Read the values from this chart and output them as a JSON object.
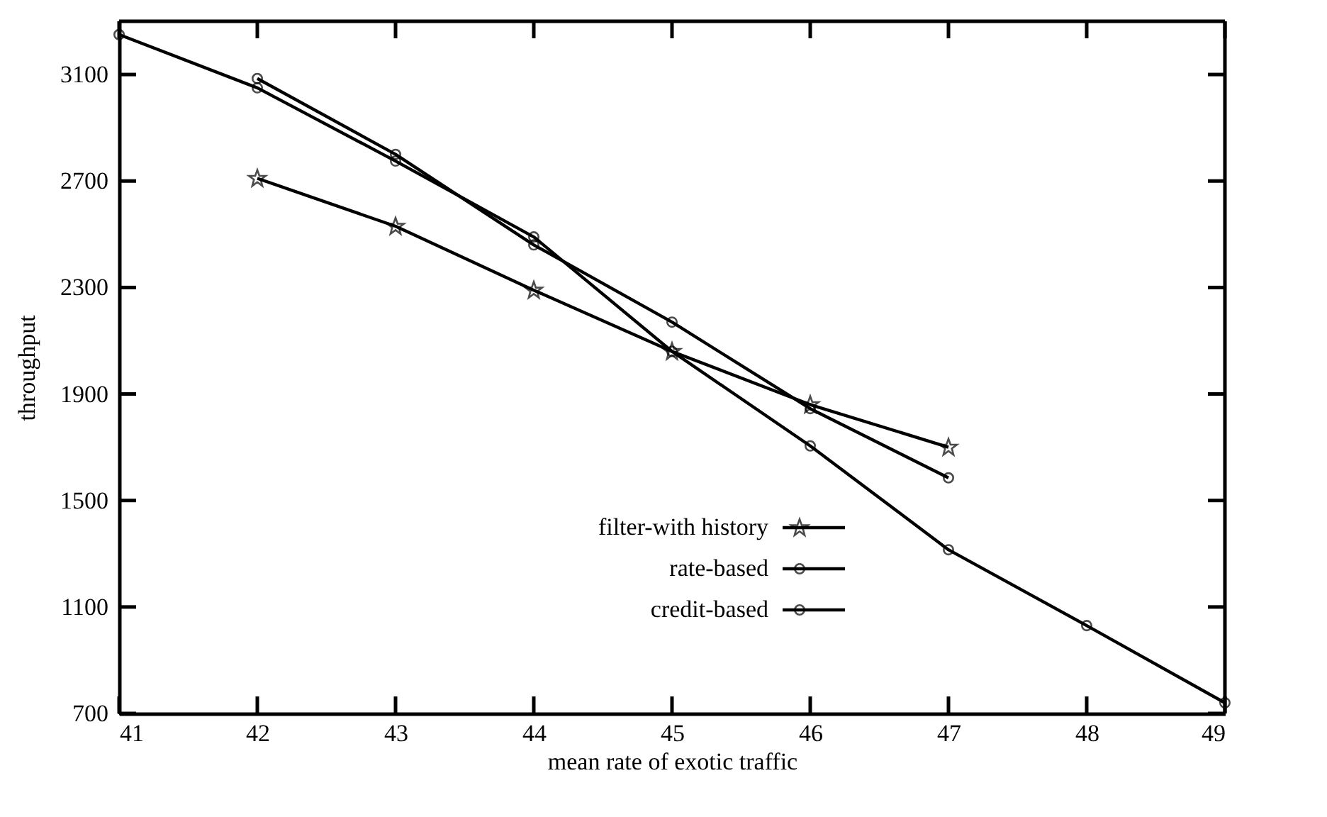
{
  "chart_data": {
    "type": "line",
    "xlabel": "mean rate of exotic traffic",
    "ylabel": "throughput",
    "xlim": [
      41,
      49
    ],
    "xticks": [
      41,
      42,
      43,
      44,
      45,
      46,
      47,
      48,
      49
    ],
    "ylim": [
      700,
      3300
    ],
    "yticks": [
      700,
      1100,
      1500,
      1900,
      2300,
      2700,
      3100
    ],
    "grid": false,
    "legend": "bottom",
    "series": [
      {
        "name": "filter-with history",
        "color": "#000000",
        "marker": "star",
        "x": [
          42,
          43,
          44,
          45,
          46,
          47
        ],
        "values": [
          2710,
          2530,
          2290,
          2060,
          1860,
          1700
        ]
      },
      {
        "name": "rate-based",
        "color": "#000000",
        "marker": "circle",
        "x": [
          41,
          42,
          43,
          44,
          45,
          46,
          47,
          48,
          49
        ],
        "values": [
          3250,
          3050,
          2775,
          2490,
          2060,
          1705,
          1315,
          1030,
          740
        ]
      },
      {
        "name": "credit-based",
        "color": "#000000",
        "marker": "circle",
        "x": [
          42,
          43,
          44,
          45,
          46,
          47
        ],
        "values": [
          3085,
          2800,
          2460,
          2170,
          1845,
          1585
        ]
      }
    ]
  }
}
